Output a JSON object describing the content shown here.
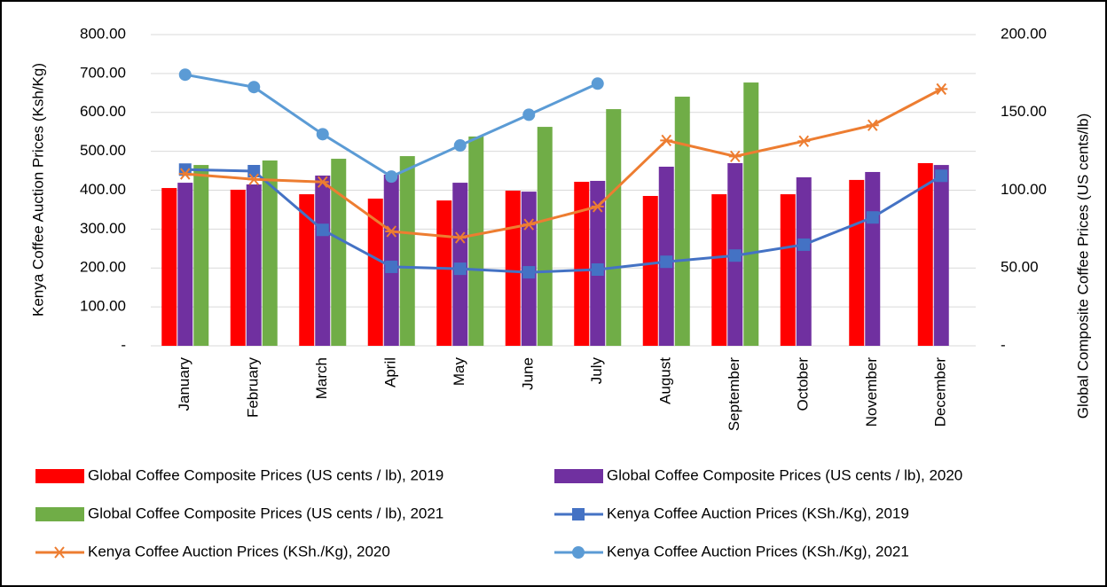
{
  "chart_data": {
    "type": "bar-line",
    "y_label": "Kenya Coffee Auction Prices (Ksh/Kg)",
    "y2_label": "Global Composite Coffee Prices (US  cents/lb)",
    "categories": [
      "January",
      "February",
      "March",
      "April",
      "May",
      "June",
      "July",
      "August",
      "September",
      "October",
      "November",
      "December"
    ],
    "ylim": [
      0,
      800
    ],
    "yticks": [
      {
        "value": 0,
        "label": "-"
      },
      {
        "value": 100,
        "label": "100.00"
      },
      {
        "value": 200,
        "label": "200.00"
      },
      {
        "value": 300,
        "label": "300.00"
      },
      {
        "value": 400,
        "label": "400.00"
      },
      {
        "value": 500,
        "label": "500.00"
      },
      {
        "value": 600,
        "label": "600.00"
      },
      {
        "value": 700,
        "label": "700.00"
      },
      {
        "value": 800,
        "label": "800.00"
      }
    ],
    "y2lim": [
      0,
      200
    ],
    "y2ticks": [
      {
        "value": 0,
        "label": "-"
      },
      {
        "value": 50,
        "label": "50.00"
      },
      {
        "value": 100,
        "label": "100.00"
      },
      {
        "value": 150,
        "label": "150.00"
      },
      {
        "value": 200,
        "label": "200.00"
      }
    ],
    "grid": true,
    "series": [
      {
        "name": "Global Coffee Composite Prices (US cents / lb), 2019",
        "kind": "bar",
        "axis": "y2",
        "color": "#ff0000",
        "values": [
          101.4,
          100.3,
          97.4,
          94.6,
          93.4,
          99.7,
          105.4,
          96.3,
          97.4,
          97.4,
          106.6,
          117.4
        ]
      },
      {
        "name": "Global Coffee Composite Prices (US cents / lb), 2020",
        "kind": "bar",
        "axis": "y2",
        "color": "#7030a0",
        "values": [
          104.8,
          103.7,
          109.4,
          110,
          104.8,
          99.1,
          106,
          115.1,
          117.4,
          108.3,
          111.7,
          116.2
        ]
      },
      {
        "name": "Global Coffee Composite Prices (US cents / lb), 2021",
        "kind": "bar",
        "axis": "y2",
        "color": "#70ad47",
        "values": [
          116.2,
          119.1,
          120.2,
          121.9,
          134.5,
          140.7,
          152.1,
          160.1,
          169.2,
          null,
          null,
          null
        ]
      },
      {
        "name": "Kenya Coffee Auction Prices (KSh./Kg), 2019",
        "kind": "line",
        "marker": "square",
        "color": "#4472c4",
        "values": [
          453,
          449,
          298,
          203,
          198,
          189,
          196,
          216,
          232,
          260,
          330,
          437
        ]
      },
      {
        "name": "Kenya Coffee Auction Prices (KSh./Kg), 2020",
        "kind": "line",
        "marker": "star",
        "color": "#ed7d31",
        "values": [
          442,
          428,
          421,
          294,
          278,
          312,
          358,
          528,
          487,
          526,
          567,
          660
        ]
      },
      {
        "name": "Kenya Coffee Auction Prices (KSh./Kg), 2021",
        "kind": "line",
        "marker": "circle",
        "color": "#5b9bd5",
        "values": [
          697,
          665,
          544,
          435,
          515,
          594,
          674,
          null,
          null,
          null,
          null,
          null
        ]
      }
    ]
  }
}
